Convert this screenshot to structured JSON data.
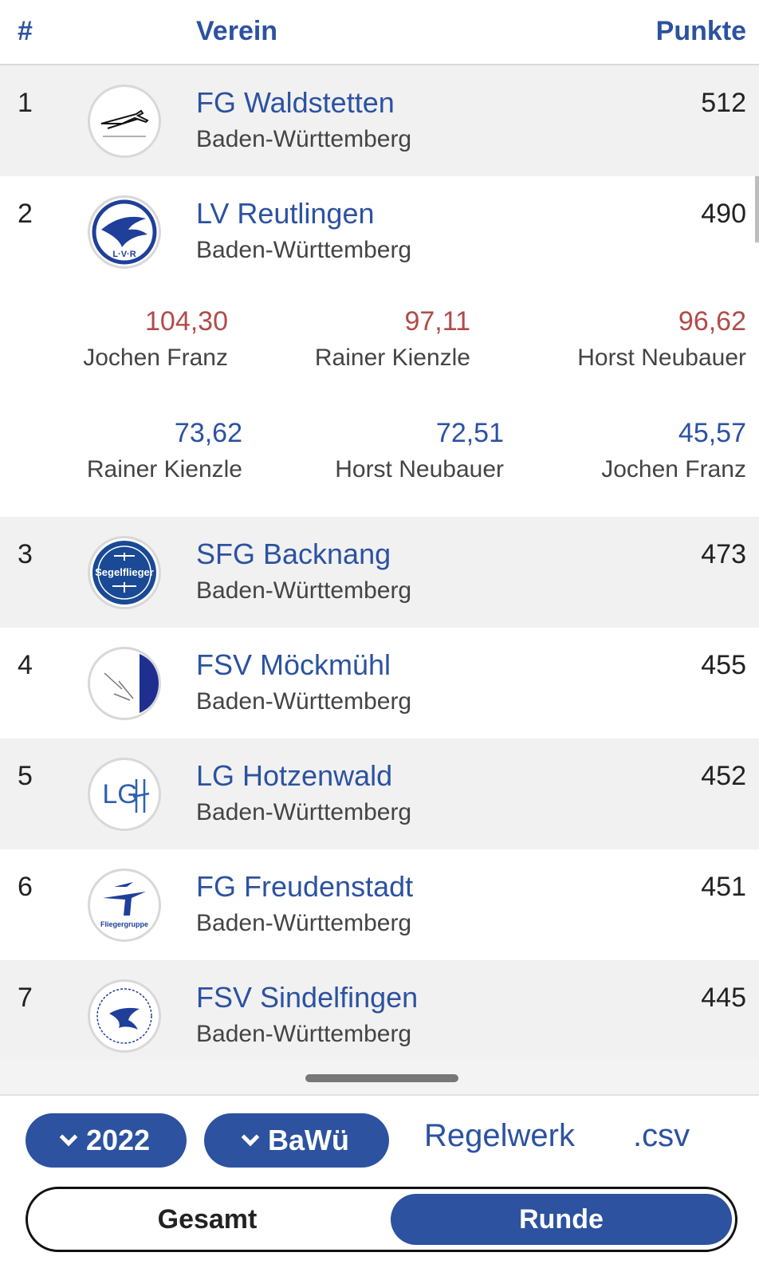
{
  "header": {
    "rank": "#",
    "club": "Verein",
    "points": "Punkte"
  },
  "rows": [
    {
      "rank": "1",
      "club": "FG Waldstetten",
      "region": "Baden-Württemberg",
      "points": "512"
    },
    {
      "rank": "2",
      "club": "LV Reutlingen",
      "region": "Baden-Württemberg",
      "points": "490"
    },
    {
      "rank": "3",
      "club": "SFG Backnang",
      "region": "Baden-Württemberg",
      "points": "473"
    },
    {
      "rank": "4",
      "club": "FSV Möckmühl",
      "region": "Baden-Württemberg",
      "points": "455"
    },
    {
      "rank": "5",
      "club": "LG Hotzenwald",
      "region": "Baden-Württemberg",
      "points": "452"
    },
    {
      "rank": "6",
      "club": "FG Freudenstadt",
      "region": "Baden-Württemberg",
      "points": "451"
    },
    {
      "rank": "7",
      "club": "FSV Sindelfingen",
      "region": "Baden-Württemberg",
      "points": "445"
    }
  ],
  "details": {
    "row1": [
      {
        "score": "104,30",
        "name": "Jochen Franz"
      },
      {
        "score": "97,11",
        "name": "Rainer Kienzle"
      },
      {
        "score": "96,62",
        "name": "Horst Neubauer"
      }
    ],
    "row2": [
      {
        "score": "73,62",
        "name": "Rainer Kienzle"
      },
      {
        "score": "72,51",
        "name": "Horst Neubauer"
      },
      {
        "score": "45,57",
        "name": "Jochen Franz"
      }
    ]
  },
  "logos": {
    "row3_text": "Segelflieger",
    "row5_text": "LG",
    "row6_text": "Fliegergruppe"
  },
  "footer": {
    "year": "2022",
    "region": "BaWü",
    "rules": "Regelwerk",
    "csv": ".csv",
    "toggle_gesamt": "Gesamt",
    "toggle_runde": "Runde"
  },
  "colors": {
    "accent": "#2c52a0",
    "score_red": "#b24b4b"
  }
}
